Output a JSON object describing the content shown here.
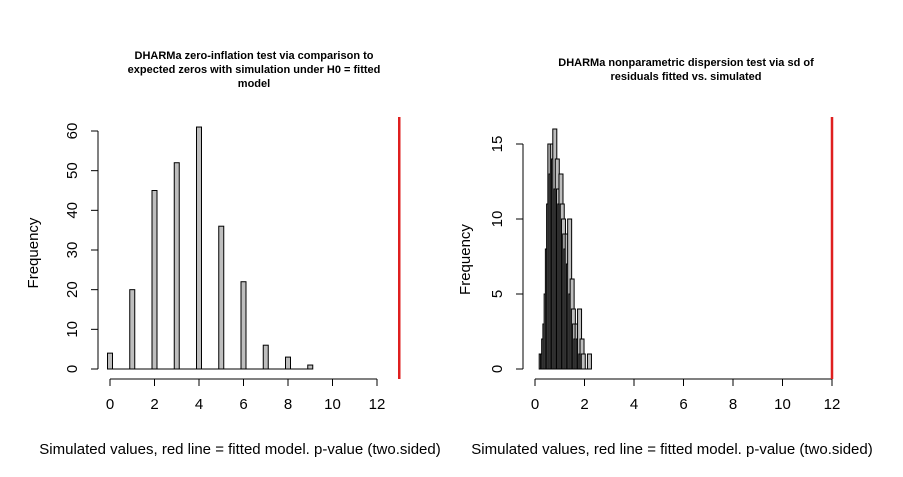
{
  "chart_data": [
    {
      "type": "bar",
      "title_lines": [
        "DHARMa zero-inflation test via comparison to",
        "expected zeros with simulation under H0 = fitted",
        "model"
      ],
      "xlabel": "Simulated values, red line = fitted model. p-value (two.sided)",
      "ylabel": "Frequency",
      "xlim": [
        0,
        12
      ],
      "ylim": [
        0,
        60
      ],
      "xticks": [
        "0",
        "2",
        "4",
        "6",
        "8",
        "10",
        "12"
      ],
      "yticks": [
        "0",
        "10",
        "20",
        "30",
        "40",
        "50",
        "60"
      ],
      "bins": [
        {
          "x": 0,
          "value": 4
        },
        {
          "x": 1,
          "value": 20
        },
        {
          "x": 2,
          "value": 45
        },
        {
          "x": 3,
          "value": 52
        },
        {
          "x": 4,
          "value": 61
        },
        {
          "x": 5,
          "value": 36
        },
        {
          "x": 6,
          "value": 22
        },
        {
          "x": 7,
          "value": 6
        },
        {
          "x": 8,
          "value": 3
        },
        {
          "x": 9,
          "value": 1
        }
      ],
      "observed_value": 13,
      "bar_color": "#bebebe",
      "line_color": "#df1f1f"
    },
    {
      "type": "bar",
      "title_lines": [
        "DHARMa nonparametric dispersion test via sd of",
        "residuals fitted vs. simulated"
      ],
      "xlabel": "Simulated values, red line = fitted model. p-value (two.sided)",
      "ylabel": "Frequency",
      "xlim": [
        0,
        12
      ],
      "ylim": [
        0,
        15
      ],
      "xticks": [
        "0",
        "2",
        "4",
        "6",
        "8",
        "10",
        "12"
      ],
      "yticks": [
        "0",
        "5",
        "10",
        "15"
      ],
      "bins": [
        {
          "x": 0.25,
          "value": 1
        },
        {
          "x": 0.3,
          "value": 1
        },
        {
          "x": 0.35,
          "value": 2
        },
        {
          "x": 0.4,
          "value": 3
        },
        {
          "x": 0.45,
          "value": 5
        },
        {
          "x": 0.5,
          "value": 8
        },
        {
          "x": 0.55,
          "value": 11
        },
        {
          "x": 0.6,
          "value": 15
        },
        {
          "x": 0.65,
          "value": 13
        },
        {
          "x": 0.7,
          "value": 15
        },
        {
          "x": 0.75,
          "value": 14
        },
        {
          "x": 0.8,
          "value": 16
        },
        {
          "x": 0.85,
          "value": 12
        },
        {
          "x": 0.9,
          "value": 14
        },
        {
          "x": 0.95,
          "value": 12
        },
        {
          "x": 1.0,
          "value": 11
        },
        {
          "x": 1.05,
          "value": 13
        },
        {
          "x": 1.1,
          "value": 11
        },
        {
          "x": 1.15,
          "value": 10
        },
        {
          "x": 1.2,
          "value": 9
        },
        {
          "x": 1.25,
          "value": 8
        },
        {
          "x": 1.3,
          "value": 9
        },
        {
          "x": 1.35,
          "value": 7
        },
        {
          "x": 1.4,
          "value": 10
        },
        {
          "x": 1.45,
          "value": 5
        },
        {
          "x": 1.5,
          "value": 6
        },
        {
          "x": 1.55,
          "value": 4
        },
        {
          "x": 1.6,
          "value": 3
        },
        {
          "x": 1.65,
          "value": 2
        },
        {
          "x": 1.7,
          "value": 3
        },
        {
          "x": 1.75,
          "value": 2
        },
        {
          "x": 1.8,
          "value": 4
        },
        {
          "x": 1.85,
          "value": 1
        },
        {
          "x": 1.9,
          "value": 2
        },
        {
          "x": 1.95,
          "value": 1
        },
        {
          "x": 2.2,
          "value": 1
        }
      ],
      "observed_value": 12,
      "bar_color": "#bebebe",
      "line_color": "#df1f1f"
    }
  ]
}
